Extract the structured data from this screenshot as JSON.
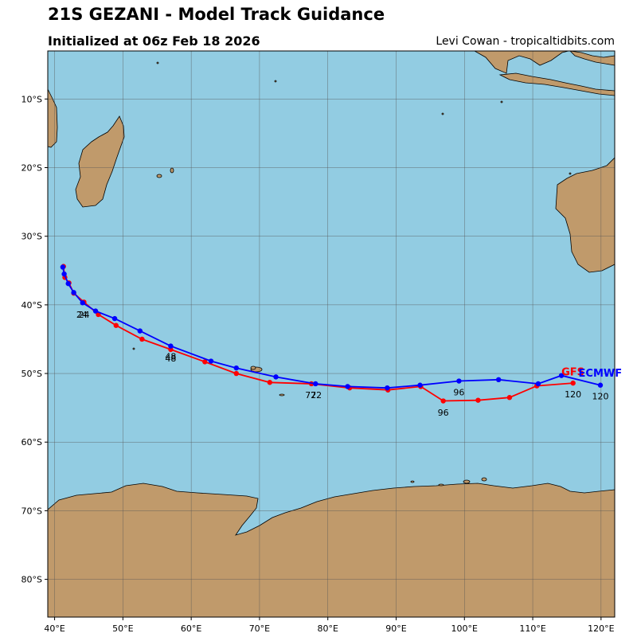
{
  "header": {
    "title": "21S GEZANI - Model Track Guidance",
    "subtitle": "Initialized at 06z Feb 18 2026",
    "credit": "Levi Cowan - tropicaltidbits.com"
  },
  "colors": {
    "ocean": "#92cce2",
    "land": "#c09a6b",
    "grid": "#555555",
    "gfs": "#ff0000",
    "ecmwf": "#0000ff"
  },
  "map": {
    "lon_range": [
      39,
      122
    ],
    "lat_range": [
      -85.5,
      -3
    ],
    "lon_ticks": [
      {
        "value": 40,
        "label": "40°E"
      },
      {
        "value": 50,
        "label": "50°E"
      },
      {
        "value": 60,
        "label": "60°E"
      },
      {
        "value": 70,
        "label": "70°E"
      },
      {
        "value": 80,
        "label": "80°E"
      },
      {
        "value": 90,
        "label": "90°E"
      },
      {
        "value": 100,
        "label": "100°E"
      },
      {
        "value": 110,
        "label": "110°E"
      },
      {
        "value": 120,
        "label": "120°E"
      }
    ],
    "lat_ticks": [
      {
        "value": -10,
        "label": "10°S"
      },
      {
        "value": -20,
        "label": "20°S"
      },
      {
        "value": -30,
        "label": "30°S"
      },
      {
        "value": -40,
        "label": "40°S"
      },
      {
        "value": -50,
        "label": "50°S"
      },
      {
        "value": -60,
        "label": "60°S"
      },
      {
        "value": -70,
        "label": "70°S"
      },
      {
        "value": -80,
        "label": "80°S"
      }
    ],
    "grid": true
  },
  "tracks": [
    {
      "name": "GFS",
      "color": "#ff0000",
      "points": [
        [
          41.3,
          -34.4
        ],
        [
          41.5,
          -36.0
        ],
        [
          42.1,
          -36.8
        ],
        [
          42.8,
          -38.3
        ],
        [
          44.3,
          -39.6
        ],
        [
          46.4,
          -41.4
        ],
        [
          49.0,
          -43.0
        ],
        [
          52.8,
          -45.0
        ],
        [
          57.0,
          -46.5
        ],
        [
          62.0,
          -48.3
        ],
        [
          66.6,
          -50.0
        ],
        [
          71.5,
          -51.3
        ],
        [
          77.6,
          -51.5
        ],
        [
          83.2,
          -52.1
        ],
        [
          88.8,
          -52.4
        ],
        [
          93.6,
          -51.9
        ],
        [
          96.9,
          -54.0
        ],
        [
          102.0,
          -53.9
        ],
        [
          106.6,
          -53.5
        ],
        [
          110.6,
          -51.8
        ],
        [
          115.9,
          -51.4
        ]
      ],
      "labels": [
        {
          "text": "24",
          "lon": 44.3,
          "lat": -41.4
        },
        {
          "text": "48",
          "lon": 57.0,
          "lat": -47.8
        },
        {
          "text": "72",
          "lon": 77.5,
          "lat": -53.1
        },
        {
          "text": "96",
          "lon": 96.9,
          "lat": -55.7
        },
        {
          "text": "120",
          "lon": 115.9,
          "lat": -53.0
        }
      ],
      "name_pos": {
        "lon": 114.2,
        "lat": -49.8
      }
    },
    {
      "name": "ECMWF",
      "color": "#0000ff",
      "points": [
        [
          41.2,
          -34.5
        ],
        [
          41.4,
          -35.5
        ],
        [
          42.0,
          -36.9
        ],
        [
          42.8,
          -38.2
        ],
        [
          44.1,
          -39.7
        ],
        [
          46.0,
          -40.9
        ],
        [
          48.8,
          -42.0
        ],
        [
          52.5,
          -43.8
        ],
        [
          57.0,
          -46.0
        ],
        [
          62.9,
          -48.2
        ],
        [
          66.6,
          -49.2
        ],
        [
          72.4,
          -50.5
        ],
        [
          78.2,
          -51.5
        ],
        [
          82.9,
          -51.9
        ],
        [
          88.7,
          -52.1
        ],
        [
          93.5,
          -51.7
        ],
        [
          99.2,
          -51.1
        ],
        [
          105.0,
          -50.9
        ],
        [
          110.8,
          -51.5
        ],
        [
          114.2,
          -50.3
        ],
        [
          119.9,
          -51.7
        ]
      ],
      "labels": [
        {
          "text": "24",
          "lon": 44.0,
          "lat": -41.4
        },
        {
          "text": "48",
          "lon": 57.0,
          "lat": -47.5
        },
        {
          "text": "72",
          "lon": 78.3,
          "lat": -53.1
        },
        {
          "text": "96",
          "lon": 99.2,
          "lat": -52.7
        },
        {
          "text": "120",
          "lon": 119.9,
          "lat": -53.3
        }
      ],
      "name_pos": {
        "lon": 116.7,
        "lat": -50.0
      }
    }
  ]
}
